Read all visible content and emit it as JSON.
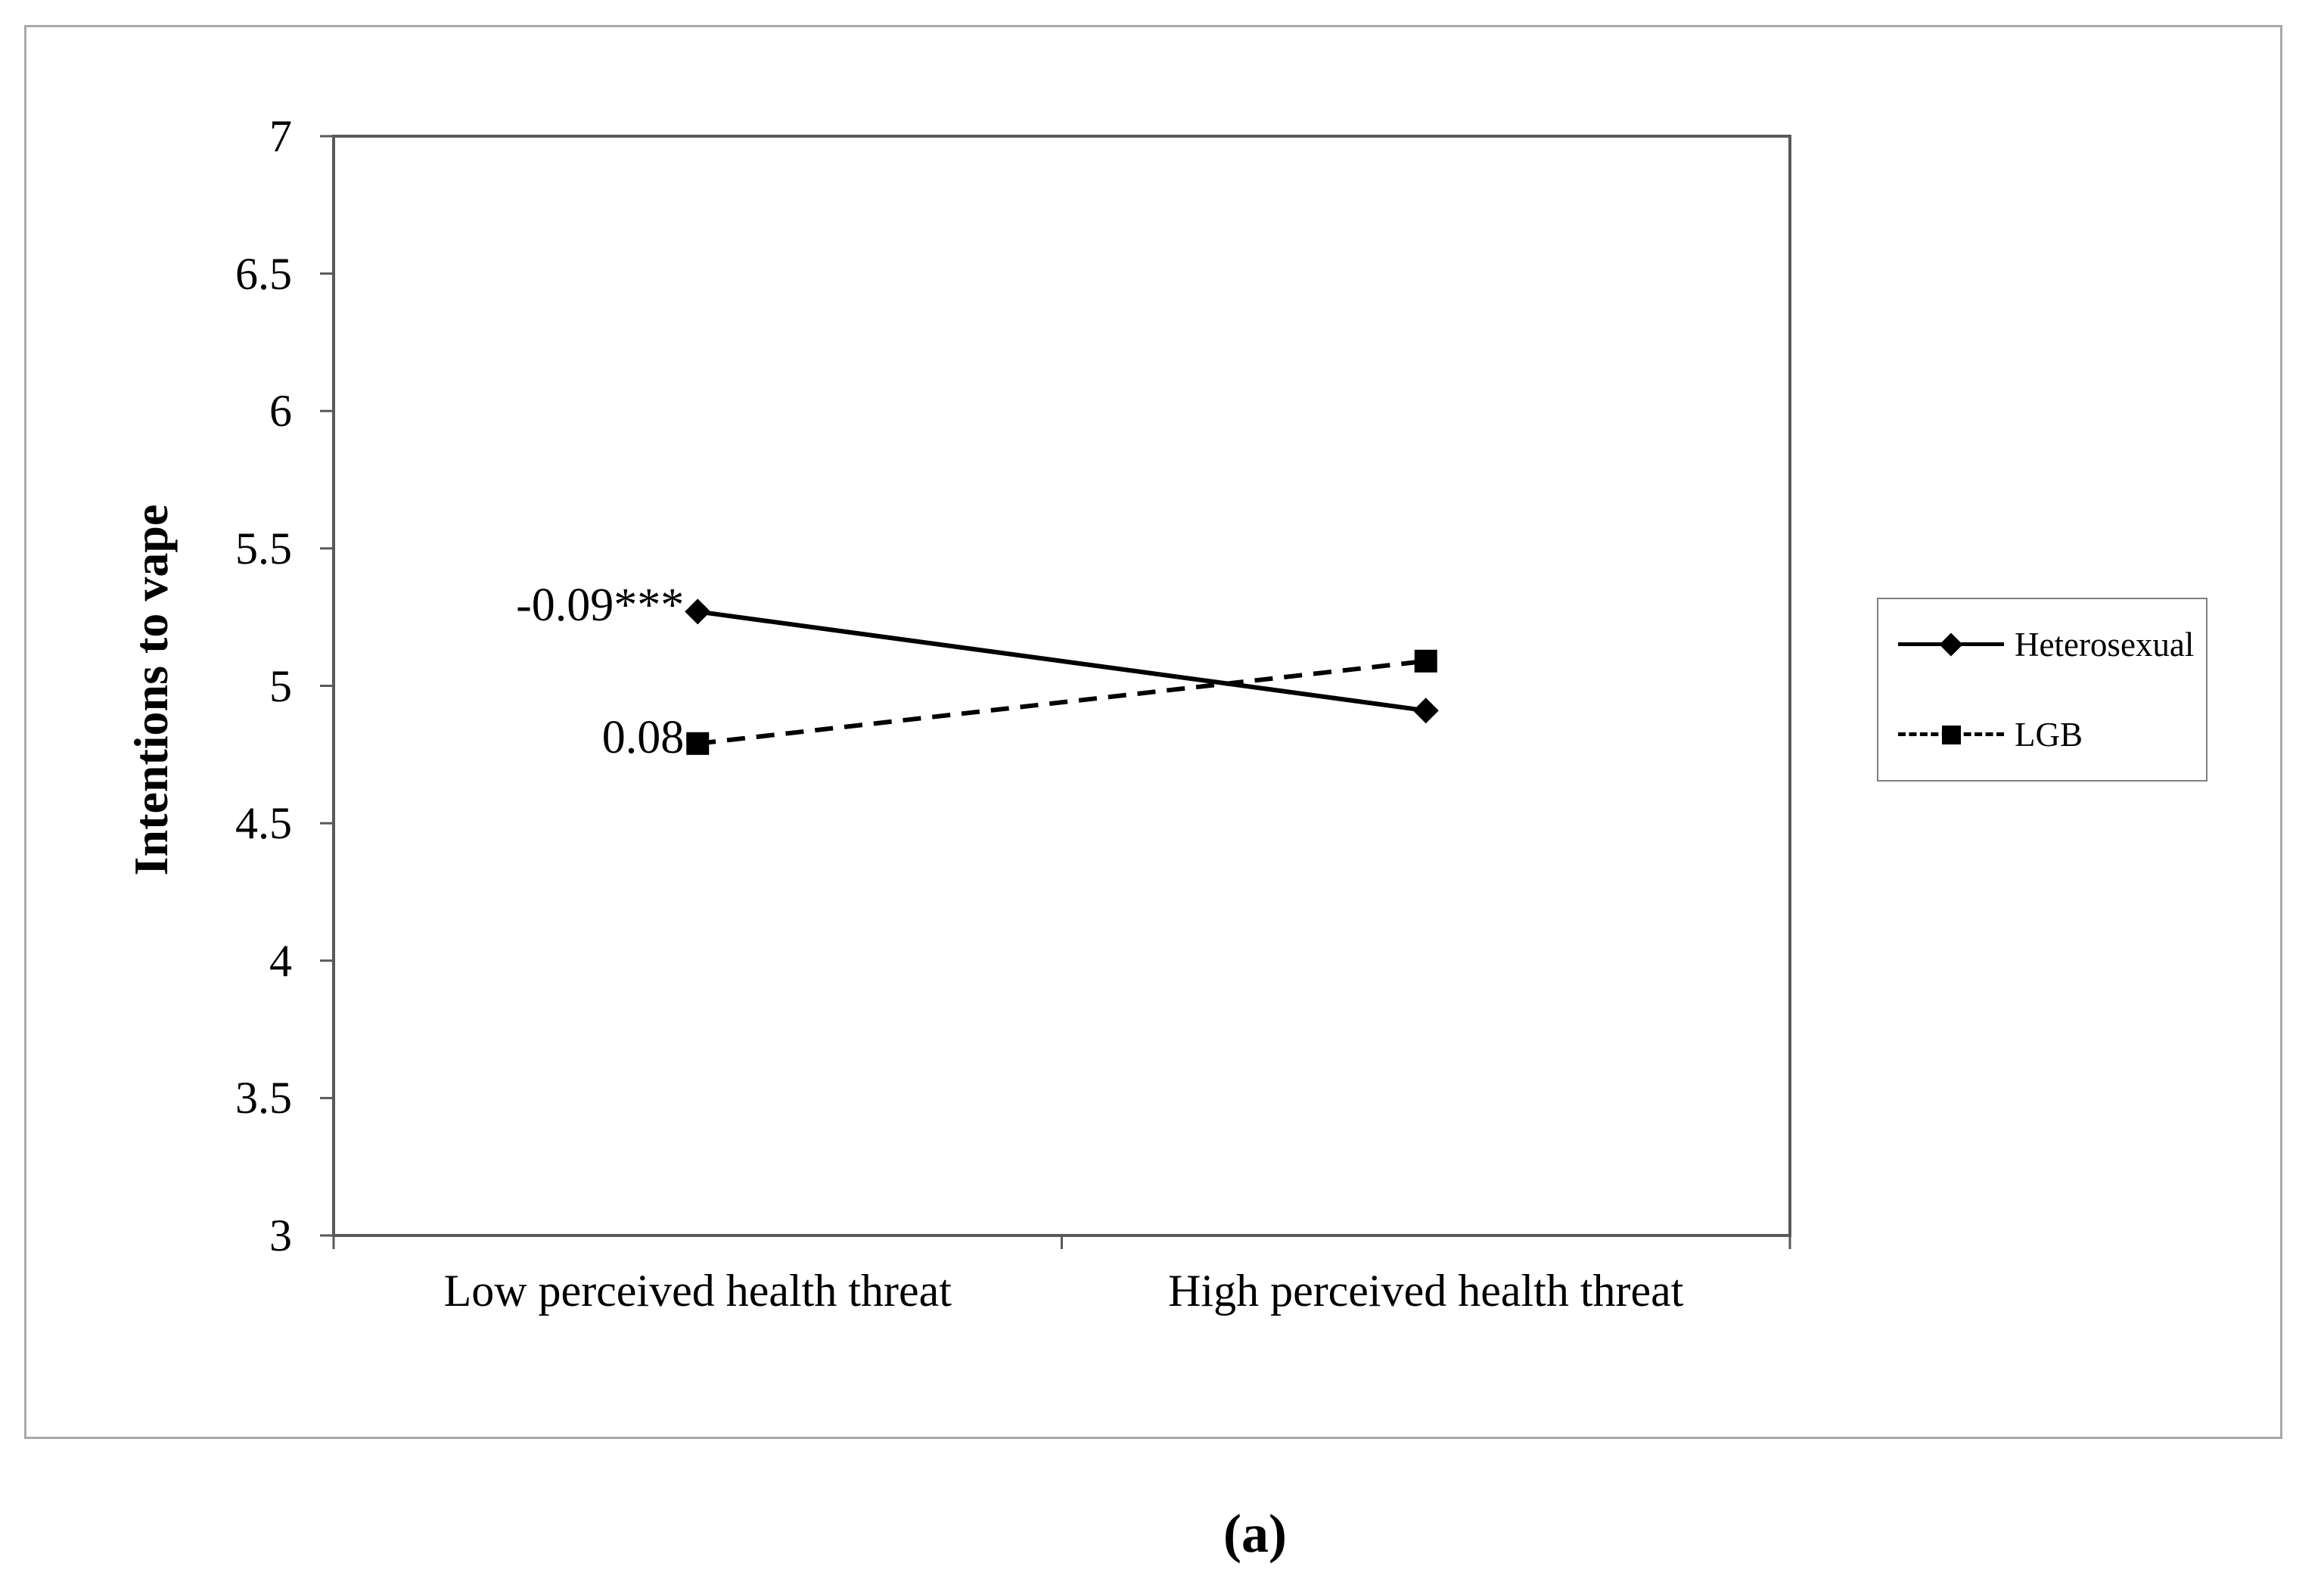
{
  "figure": {
    "caption": "(a)"
  },
  "chart_data": {
    "type": "line",
    "title": "",
    "xlabel": "",
    "ylabel": "Intentions to vape",
    "ylim": [
      3,
      7
    ],
    "yticks": [
      7,
      6.5,
      6,
      5.5,
      5,
      4.5,
      4,
      3.5,
      3
    ],
    "grid": false,
    "legend_position": "right",
    "categories": [
      "Low perceived health threat",
      "High perceived health threat"
    ],
    "series": [
      {
        "name": "Heterosexual",
        "values": [
          5.27,
          4.91
        ],
        "line_style": "solid",
        "marker": "diamond",
        "color": "#000000"
      },
      {
        "name": "LGB",
        "values": [
          4.79,
          5.09
        ],
        "line_style": "dashed",
        "marker": "square",
        "color": "#000000"
      }
    ],
    "annotations": [
      {
        "text": "-0.09***",
        "series": "Heterosexual",
        "point": 0
      },
      {
        "text": "0.08",
        "series": "LGB",
        "point": 0
      }
    ]
  },
  "colors": {
    "axis": "#595959",
    "series_line": "#000000",
    "outer_border": "#a9a9a9",
    "legend_border": "#7f7f7f",
    "text": "#000000"
  }
}
